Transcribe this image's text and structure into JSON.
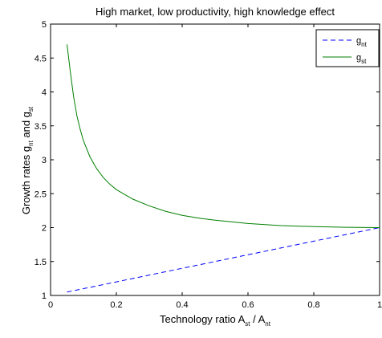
{
  "chart_data": {
    "type": "line",
    "title": "High market, low productivity, high knowledge effect",
    "xlabel": {
      "main": "Technology ratio A",
      "sub1": "st",
      "mid": " / A",
      "sub2": "nt"
    },
    "ylabel": {
      "main": "Growth rates g",
      "sub1": "nt",
      "mid": " and g",
      "sub2": "st"
    },
    "xlim": [
      0,
      1
    ],
    "ylim": [
      1,
      5
    ],
    "xticks": [
      0,
      0.2,
      0.4,
      0.6,
      0.8,
      1
    ],
    "xtick_labels": [
      "0",
      "0.2",
      "0.4",
      "0.6",
      "0.8",
      "1"
    ],
    "yticks": [
      1,
      1.5,
      2,
      2.5,
      3,
      3.5,
      4,
      4.5,
      5
    ],
    "ytick_labels": [
      "1",
      "1.5",
      "2",
      "2.5",
      "3",
      "3.5",
      "4",
      "4.5",
      "5"
    ],
    "grid": false,
    "legend": {
      "position": "top-right"
    },
    "series": [
      {
        "name": "g",
        "name_sub": "nt",
        "color": "#0000ff",
        "style": "dashed",
        "x": [
          0.05,
          0.1,
          0.2,
          0.3,
          0.4,
          0.5,
          0.6,
          0.7,
          0.8,
          0.9,
          1.0
        ],
        "y": [
          1.05,
          1.1,
          1.2,
          1.3,
          1.4,
          1.5,
          1.6,
          1.7,
          1.8,
          1.9,
          2.0
        ]
      },
      {
        "name": "g",
        "name_sub": "st",
        "color": "#007f00",
        "style": "solid",
        "x": [
          0.05,
          0.06,
          0.07,
          0.08,
          0.09,
          0.1,
          0.12,
          0.14,
          0.16,
          0.18,
          0.2,
          0.25,
          0.3,
          0.35,
          0.4,
          0.45,
          0.5,
          0.6,
          0.7,
          0.8,
          0.9,
          1.0
        ],
        "y": [
          4.7,
          4.3,
          3.93,
          3.65,
          3.45,
          3.28,
          3.04,
          2.87,
          2.74,
          2.64,
          2.56,
          2.42,
          2.32,
          2.24,
          2.18,
          2.14,
          2.11,
          2.06,
          2.03,
          2.015,
          2.005,
          2.0
        ]
      }
    ]
  }
}
